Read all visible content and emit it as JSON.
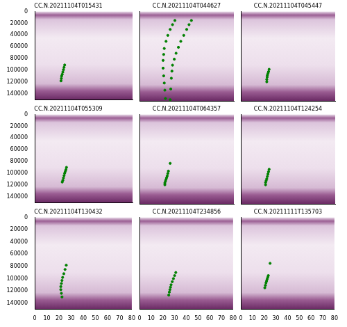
{
  "chart_data": [
    {
      "type": "scatter",
      "title": "CC.N.20211104T015431",
      "tick_labels": "y",
      "grid": false,
      "xlim": [
        0,
        80
      ],
      "xticks": [
        0,
        10,
        20,
        30,
        40,
        50,
        60,
        70,
        80
      ],
      "ylim": [
        150000,
        0
      ],
      "yticks": [
        0,
        20000,
        40000,
        60000,
        80000,
        100000,
        120000,
        140000
      ],
      "series": [
        {
          "color": "#008000",
          "marker": "circle",
          "x": [
            24.5,
            24,
            23.5,
            23,
            22.5,
            22,
            21.8,
            21.5
          ],
          "values": [
            91000,
            95000,
            99000,
            103000,
            107000,
            110000,
            114000,
            118000
          ]
        }
      ]
    },
    {
      "type": "scatter",
      "title": "CC.N.20211104T044627",
      "tick_labels": false,
      "grid": false,
      "xlim": [
        0,
        80
      ],
      "xticks": [
        0,
        10,
        20,
        30,
        40,
        50,
        60,
        70,
        80
      ],
      "ylim": [
        150000,
        0
      ],
      "yticks": [
        0,
        20000,
        40000,
        60000,
        80000,
        100000,
        120000,
        140000
      ],
      "series": [
        {
          "color": "#008000",
          "marker": "circle",
          "x": [
            30,
            28,
            26,
            24,
            22.5,
            21,
            20.5,
            20,
            20,
            20.5,
            21,
            21.5,
            22
          ],
          "values": [
            15000,
            22000,
            30000,
            40000,
            50000,
            62000,
            72000,
            82000,
            95000,
            108000,
            120000,
            132000,
            146000
          ]
        },
        {
          "color": "#008000",
          "marker": "circle",
          "x": [
            44,
            42,
            40,
            37.5,
            35,
            33,
            31,
            29.5,
            28,
            27.5,
            27,
            26.5,
            26
          ],
          "values": [
            15000,
            22000,
            30000,
            40000,
            50000,
            60000,
            70000,
            80000,
            90000,
            100000,
            112000,
            130000,
            148000
          ]
        }
      ]
    },
    {
      "type": "scatter",
      "title": "CC.N.20211104T045447",
      "tick_labels": false,
      "grid": false,
      "xlim": [
        0,
        80
      ],
      "xticks": [
        0,
        10,
        20,
        30,
        40,
        50,
        60,
        70,
        80
      ],
      "ylim": [
        150000,
        0
      ],
      "yticks": [
        0,
        20000,
        40000,
        60000,
        80000,
        100000,
        120000,
        140000
      ],
      "series": [
        {
          "color": "#008000",
          "marker": "circle",
          "x": [
            24,
            23.5,
            23,
            22.5,
            22.3,
            22,
            22
          ],
          "values": [
            97000,
            101000,
            104000,
            107000,
            110000,
            114000,
            118000
          ]
        }
      ]
    },
    {
      "type": "scatter",
      "title": "CC.N.20211104T055309",
      "tick_labels": "y",
      "grid": false,
      "xlim": [
        0,
        80
      ],
      "xticks": [
        0,
        10,
        20,
        30,
        40,
        50,
        60,
        70,
        80
      ],
      "ylim": [
        150000,
        0
      ],
      "yticks": [
        0,
        20000,
        40000,
        60000,
        80000,
        100000,
        120000,
        140000
      ],
      "series": [
        {
          "color": "#008000",
          "marker": "circle",
          "x": [
            26,
            25.5,
            25,
            24.5,
            24,
            23.5,
            23,
            22.5
          ],
          "values": [
            90000,
            94000,
            97000,
            100000,
            104000,
            108000,
            112000,
            115000
          ]
        }
      ]
    },
    {
      "type": "scatter",
      "title": "CC.N.20211104T064357",
      "tick_labels": false,
      "grid": false,
      "xlim": [
        0,
        80
      ],
      "xticks": [
        0,
        10,
        20,
        30,
        40,
        50,
        60,
        70,
        80
      ],
      "ylim": [
        150000,
        0
      ],
      "yticks": [
        0,
        20000,
        40000,
        60000,
        80000,
        100000,
        120000,
        140000
      ],
      "series": [
        {
          "color": "#008000",
          "marker": "circle",
          "x": [
            26,
            24.5,
            24,
            23.5,
            23,
            22.5,
            22,
            21.5,
            21.5
          ],
          "values": [
            82000,
            95000,
            99000,
            103000,
            106000,
            109000,
            112000,
            115000,
            118000
          ]
        }
      ]
    },
    {
      "type": "scatter",
      "title": "CC.N.20211104T124254",
      "tick_labels": false,
      "grid": false,
      "xlim": [
        0,
        80
      ],
      "xticks": [
        0,
        10,
        20,
        30,
        40,
        50,
        60,
        70,
        80
      ],
      "ylim": [
        150000,
        0
      ],
      "yticks": [
        0,
        20000,
        40000,
        60000,
        80000,
        100000,
        120000,
        140000
      ],
      "series": [
        {
          "color": "#008000",
          "marker": "circle",
          "x": [
            24,
            23.5,
            23,
            22.5,
            22,
            21.5,
            21,
            21
          ],
          "values": [
            92000,
            96000,
            100000,
            104000,
            108000,
            111000,
            114000,
            118000
          ]
        }
      ]
    },
    {
      "type": "scatter",
      "title": "CC.N.20211104T130432",
      "tick_labels": true,
      "grid": false,
      "xlim": [
        0,
        80
      ],
      "xticks": [
        0,
        10,
        20,
        30,
        40,
        50,
        60,
        70,
        80
      ],
      "ylim": [
        150000,
        0
      ],
      "yticks": [
        0,
        20000,
        40000,
        60000,
        80000,
        100000,
        120000,
        140000
      ],
      "series": [
        {
          "color": "#008000",
          "marker": "circle",
          "x": [
            26,
            25,
            24,
            23,
            22.5,
            22,
            21.5,
            21.5,
            22,
            22.5
          ],
          "values": [
            78000,
            85000,
            92000,
            98000,
            103000,
            108000,
            113000,
            118000,
            124000,
            130000
          ]
        }
      ]
    },
    {
      "type": "scatter",
      "title": "CC.N.20211104T234856",
      "tick_labels": "x",
      "grid": false,
      "xlim": [
        0,
        80
      ],
      "xticks": [
        0,
        10,
        20,
        30,
        40,
        50,
        60,
        70,
        80
      ],
      "ylim": [
        150000,
        0
      ],
      "yticks": [
        0,
        20000,
        40000,
        60000,
        80000,
        100000,
        120000,
        140000
      ],
      "series": [
        {
          "color": "#008000",
          "marker": "circle",
          "x": [
            31,
            30,
            29,
            28,
            27,
            26.5,
            26,
            25.5,
            25
          ],
          "values": [
            90000,
            95000,
            100000,
            105000,
            110000,
            114000,
            118000,
            122000,
            127000
          ]
        }
      ]
    },
    {
      "type": "scatter",
      "title": "CC.N.20211111T135703",
      "tick_labels": "x",
      "grid": false,
      "xlim": [
        0,
        80
      ],
      "xticks": [
        0,
        10,
        20,
        30,
        40,
        50,
        60,
        70,
        80
      ],
      "ylim": [
        150000,
        0
      ],
      "yticks": [
        0,
        20000,
        40000,
        60000,
        80000,
        100000,
        120000,
        140000
      ],
      "series": [
        {
          "color": "#008000",
          "marker": "circle",
          "x": [
            25,
            23.5,
            23,
            22.5,
            22,
            21.5,
            21,
            20.5
          ],
          "values": [
            75000,
            95000,
            98000,
            101000,
            104000,
            107000,
            111000,
            115000
          ]
        }
      ]
    }
  ]
}
